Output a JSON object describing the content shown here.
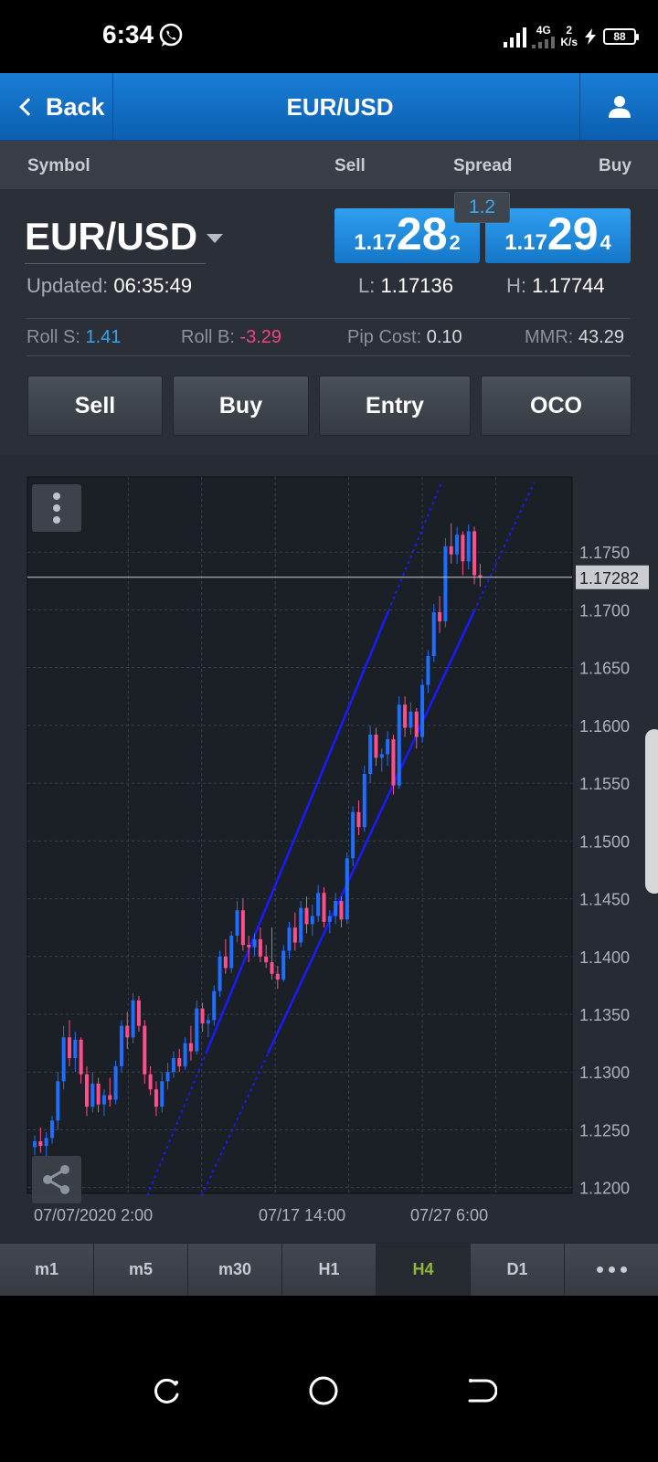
{
  "status_bar": {
    "time": "6:34",
    "network": "4G",
    "speed_value": "2",
    "speed_unit": "K/s",
    "battery": "88"
  },
  "nav": {
    "back_label": "Back",
    "title": "EUR/USD",
    "user_icon": "user-icon"
  },
  "columns": {
    "symbol": "Symbol",
    "sell": "Sell",
    "spread": "Spread",
    "buy": "Buy"
  },
  "quote": {
    "symbol": "EUR/USD",
    "spread": "1.2",
    "sell": {
      "prefix": "1.17",
      "big": "28",
      "frac": "2"
    },
    "buy": {
      "prefix": "1.17",
      "big": "29",
      "frac": "4"
    },
    "updated_label": "Updated:",
    "updated_value": "06:35:49",
    "low_label": "L:",
    "low_value": "1.17136",
    "high_label": "H:",
    "high_value": "1.17744",
    "roll_s_label": "Roll S:",
    "roll_s_value": "1.41",
    "roll_b_label": "Roll B:",
    "roll_b_value": "-3.29",
    "pip_cost_label": "Pip Cost:",
    "pip_cost_value": "0.10",
    "mmr_label": "MMR:",
    "mmr_value": "43.29"
  },
  "actions": {
    "sell": "Sell",
    "buy": "Buy",
    "entry": "Entry",
    "oco": "OCO"
  },
  "chart_data": {
    "type": "candlestick",
    "timeframe": "H4",
    "current_price": "1.17282",
    "ylim": [
      1.1195,
      1.1815
    ],
    "y_ticks": [
      "1.1750",
      "1.1700",
      "1.1650",
      "1.1600",
      "1.1550",
      "1.1500",
      "1.1450",
      "1.1400",
      "1.1350",
      "1.1300",
      "1.1250",
      "1.1200"
    ],
    "x_ticks": [
      "07/07/2020 2:00",
      "07/17 14:00",
      "07/27 6:00"
    ],
    "bull_color": "#1e6fff",
    "bear_color": "#ff4f8b",
    "channel_color": "#1a1aff",
    "candles": [
      [
        1.1235,
        1.1245,
        1.1228,
        1.124
      ],
      [
        1.124,
        1.1252,
        1.123,
        1.1236
      ],
      [
        1.1236,
        1.1248,
        1.1225,
        1.1243
      ],
      [
        1.1243,
        1.1262,
        1.1238,
        1.1258
      ],
      [
        1.1258,
        1.13,
        1.125,
        1.1292
      ],
      [
        1.1292,
        1.134,
        1.1285,
        1.133
      ],
      [
        1.133,
        1.1345,
        1.1305,
        1.1312
      ],
      [
        1.1312,
        1.1335,
        1.13,
        1.1328
      ],
      [
        1.1328,
        1.133,
        1.129,
        1.1298
      ],
      [
        1.1298,
        1.1305,
        1.1262,
        1.127
      ],
      [
        1.127,
        1.13,
        1.1265,
        1.129
      ],
      [
        1.129,
        1.1295,
        1.1265,
        1.1272
      ],
      [
        1.1272,
        1.1285,
        1.1262,
        1.128
      ],
      [
        1.128,
        1.1295,
        1.127,
        1.1276
      ],
      [
        1.1276,
        1.131,
        1.1272,
        1.1305
      ],
      [
        1.1305,
        1.1345,
        1.13,
        1.134
      ],
      [
        1.134,
        1.1352,
        1.132,
        1.133
      ],
      [
        1.133,
        1.1368,
        1.1325,
        1.1362
      ],
      [
        1.1362,
        1.1366,
        1.1335,
        1.134
      ],
      [
        1.134,
        1.1345,
        1.129,
        1.1298
      ],
      [
        1.1298,
        1.1305,
        1.128,
        1.1285
      ],
      [
        1.1285,
        1.1292,
        1.1262,
        1.127
      ],
      [
        1.127,
        1.13,
        1.1265,
        1.1292
      ],
      [
        1.1292,
        1.1308,
        1.1285,
        1.13
      ],
      [
        1.13,
        1.1318,
        1.1295,
        1.1312
      ],
      [
        1.1312,
        1.132,
        1.13,
        1.1305
      ],
      [
        1.1305,
        1.133,
        1.1302,
        1.1325
      ],
      [
        1.1325,
        1.134,
        1.131,
        1.1318
      ],
      [
        1.1318,
        1.1362,
        1.1315,
        1.1355
      ],
      [
        1.1355,
        1.136,
        1.1335,
        1.1342
      ],
      [
        1.1342,
        1.135,
        1.133,
        1.1345
      ],
      [
        1.1345,
        1.1375,
        1.134,
        1.137
      ],
      [
        1.137,
        1.1405,
        1.1365,
        1.14
      ],
      [
        1.14,
        1.1415,
        1.1385,
        1.139
      ],
      [
        1.139,
        1.1422,
        1.1386,
        1.1418
      ],
      [
        1.1418,
        1.1448,
        1.1412,
        1.144
      ],
      [
        1.144,
        1.145,
        1.1405,
        1.141
      ],
      [
        1.141,
        1.1418,
        1.1395,
        1.1408
      ],
      [
        1.1408,
        1.142,
        1.14,
        1.1415
      ],
      [
        1.1415,
        1.1425,
        1.1395,
        1.14
      ],
      [
        1.14,
        1.141,
        1.139,
        1.1395
      ],
      [
        1.1395,
        1.1425,
        1.138,
        1.1385
      ],
      [
        1.1385,
        1.1392,
        1.1372,
        1.138
      ],
      [
        1.138,
        1.141,
        1.1378,
        1.1405
      ],
      [
        1.1405,
        1.143,
        1.1398,
        1.1425
      ],
      [
        1.1425,
        1.1438,
        1.1405,
        1.1412
      ],
      [
        1.1412,
        1.1448,
        1.1408,
        1.1442
      ],
      [
        1.1442,
        1.1452,
        1.142,
        1.1428
      ],
      [
        1.1428,
        1.1445,
        1.1418,
        1.1435
      ],
      [
        1.1435,
        1.1462,
        1.143,
        1.1455
      ],
      [
        1.1455,
        1.146,
        1.1425,
        1.143
      ],
      [
        1.143,
        1.144,
        1.142,
        1.1435
      ],
      [
        1.1435,
        1.1455,
        1.1428,
        1.1448
      ],
      [
        1.1448,
        1.1452,
        1.1425,
        1.1432
      ],
      [
        1.1432,
        1.149,
        1.1428,
        1.1485
      ],
      [
        1.1485,
        1.153,
        1.1478,
        1.1525
      ],
      [
        1.1525,
        1.1535,
        1.1505,
        1.1512
      ],
      [
        1.1512,
        1.1565,
        1.1508,
        1.1558
      ],
      [
        1.1558,
        1.16,
        1.155,
        1.1592
      ],
      [
        1.1592,
        1.1598,
        1.1565,
        1.1572
      ],
      [
        1.1572,
        1.158,
        1.156,
        1.1575
      ],
      [
        1.1575,
        1.1595,
        1.1565,
        1.1588
      ],
      [
        1.1588,
        1.1592,
        1.154,
        1.1548
      ],
      [
        1.1548,
        1.1625,
        1.1545,
        1.1618
      ],
      [
        1.1618,
        1.1625,
        1.159,
        1.1598
      ],
      [
        1.1598,
        1.162,
        1.1592,
        1.1612
      ],
      [
        1.1612,
        1.1615,
        1.158,
        1.159
      ],
      [
        1.159,
        1.164,
        1.1585,
        1.1635
      ],
      [
        1.1635,
        1.1665,
        1.1628,
        1.166
      ],
      [
        1.166,
        1.1705,
        1.1655,
        1.1698
      ],
      [
        1.1698,
        1.1712,
        1.168,
        1.169
      ],
      [
        1.169,
        1.1762,
        1.1685,
        1.1755
      ],
      [
        1.1755,
        1.1775,
        1.174,
        1.1748
      ],
      [
        1.1748,
        1.1772,
        1.174,
        1.1765
      ],
      [
        1.1765,
        1.1768,
        1.173,
        1.1742
      ],
      [
        1.1742,
        1.1774,
        1.1735,
        1.1768
      ],
      [
        1.1768,
        1.1772,
        1.1722,
        1.173
      ],
      [
        1.173,
        1.174,
        1.172,
        1.1728
      ]
    ],
    "channel": {
      "upper": [
        [
          0.22,
          1.1193
        ],
        [
          0.76,
          1.181
        ]
      ],
      "lower": [
        [
          0.32,
          1.1193
        ],
        [
          0.93,
          1.181
        ]
      ]
    }
  },
  "timeframes": [
    "m1",
    "m5",
    "m30",
    "H1",
    "H4",
    "D1"
  ],
  "timeframe_active": "H4",
  "more_icon": "more-dots-icon",
  "system_nav": [
    "recents-icon",
    "home-icon",
    "back-icon"
  ]
}
